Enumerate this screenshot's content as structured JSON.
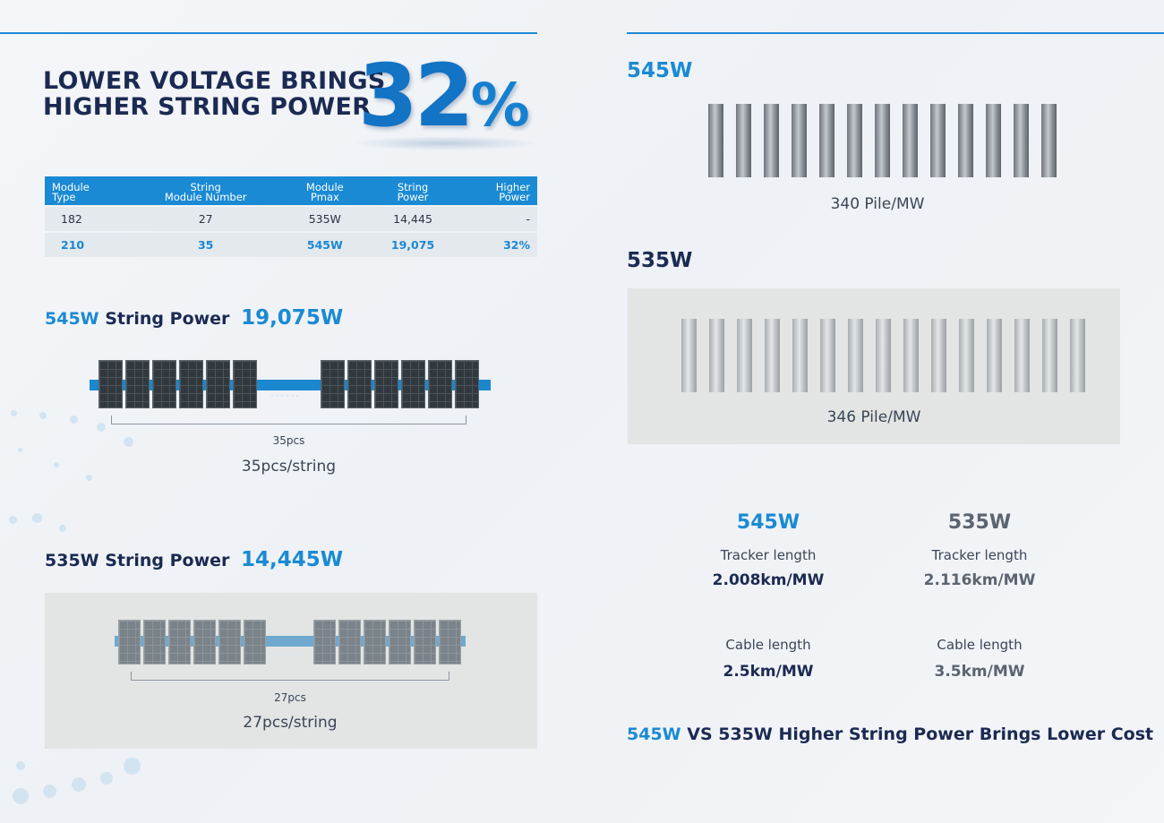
{
  "headline": {
    "line1": "LOWER VOLTAGE BRINGS",
    "line2": "HIGHER STRING POWER",
    "percent_number": "32",
    "percent_sign": "%"
  },
  "table": {
    "headers": [
      {
        "line1": "Module",
        "line2": "Type"
      },
      {
        "line1": "String",
        "line2": "Module Number"
      },
      {
        "line1": "Module",
        "line2": "Pmax"
      },
      {
        "line1": "String",
        "line2": "Power"
      },
      {
        "line1": "Higher",
        "line2": "Power"
      }
    ],
    "rows": [
      [
        "182",
        "27",
        "535W",
        "14,445",
        "-"
      ],
      [
        "210",
        "35",
        "545W",
        "19,075",
        "32%"
      ]
    ]
  },
  "string545": {
    "label_accent": "545W",
    "label_rest": "String Power",
    "value": "19,075W",
    "dots": "......",
    "count_small": "35pcs",
    "caption": "35pcs/string"
  },
  "string535": {
    "label": "535W String Power",
    "value": "14,445W",
    "dots": "......",
    "count_small": "27pcs",
    "caption": "27pcs/string"
  },
  "pile545": {
    "title": "545W",
    "caption": "340 Pile/MW"
  },
  "pile535": {
    "title": "535W",
    "caption": "346 Pile/MW"
  },
  "compare": {
    "col545": {
      "title": "545W",
      "tracker_label": "Tracker length",
      "tracker_value": "2.008km/MW",
      "cable_label": "Cable length",
      "cable_value": "2.5km/MW"
    },
    "col535": {
      "title": "535W",
      "tracker_label": "Tracker length",
      "tracker_value": "2.116km/MW",
      "cable_label": "Cable length",
      "cable_value": "3.5km/MW"
    }
  },
  "conclusion": {
    "accent": "545W",
    "rest": "VS 535W Higher String Power Brings Lower Cost"
  },
  "colors": {
    "accent": "#1a8ad4",
    "navy": "#1b2a52",
    "grey": "#5b6470"
  }
}
